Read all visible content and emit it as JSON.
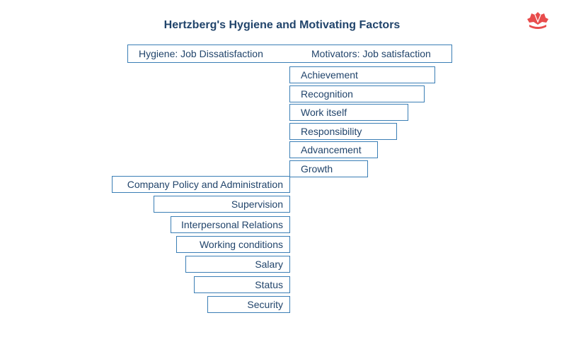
{
  "title": "Hertzberg's Hygiene and Motivating Factors",
  "header": {
    "left_label": "Hygiene: Job Dissatisfaction",
    "right_label": "Motivators: Job satisfaction"
  },
  "logo": {
    "icon": "logo-icon",
    "color": "#e84c4c"
  },
  "colors": {
    "border": "#3a7eb5",
    "text": "#21446b"
  },
  "chart_data": {
    "type": "bar",
    "title": "Hertzberg's Hygiene and Motivating Factors",
    "motivators": {
      "name": "Motivators: Job satisfaction",
      "categories": [
        "Achievement",
        "Recognition",
        "Work itself",
        "Responsibility",
        "Advancement",
        "Growth"
      ],
      "values": [
        206,
        191,
        168,
        152,
        125,
        111
      ]
    },
    "hygiene": {
      "name": "Hygiene: Job Dissatisfaction",
      "categories": [
        "Company Policy and Administration",
        "Supervision",
        "Interpersonal Relations",
        "Working conditions",
        "Salary",
        "Status",
        "Security"
      ],
      "values": [
        252,
        193,
        169,
        161,
        148,
        136,
        117
      ]
    }
  }
}
